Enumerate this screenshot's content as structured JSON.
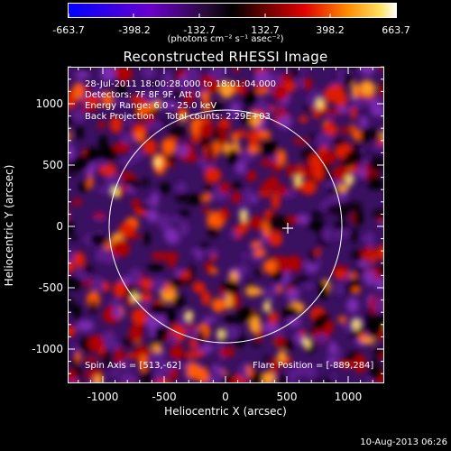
{
  "colorbar": {
    "tick_labels": [
      "-663.7",
      "-398.2",
      "-132.7",
      "132.7",
      "398.2",
      "663.7"
    ],
    "units": "(photons cm⁻² s⁻¹ asec⁻²)"
  },
  "title": "Reconstructed RHESSI Image",
  "info_lines": [
    "28-Jul-2011 18:00:28.000 to 18:01:04.000",
    "Detectors: 7F 8F 9F, Att 0",
    "Energy Range: 6.0 - 25.0 keV",
    "Back Projection    Total counts: 2.29E+03"
  ],
  "spin_axis": "Spin Axis = [513,-62]",
  "flare_position": "Flare Position = [-889,284]",
  "axes": {
    "xlabel": "Heliocentric X (arcsec)",
    "ylabel": "Heliocentric Y (arcsec)",
    "xticks": [
      "-1000",
      "-500",
      "0",
      "500",
      "1000"
    ],
    "yticks": [
      "-1000",
      "-500",
      "0",
      "500",
      "1000"
    ]
  },
  "timestamp": "10-Aug-2013 06:26"
}
